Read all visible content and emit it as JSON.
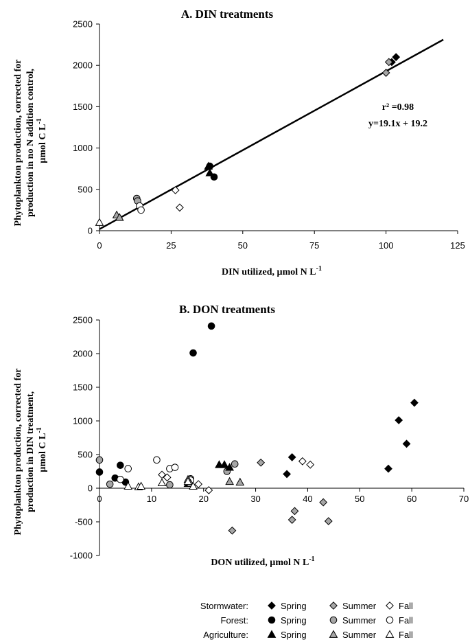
{
  "legend": {
    "rows": [
      {
        "group": "Stormwater:",
        "entries": [
          "Spring",
          "Summer",
          "Fall"
        ]
      },
      {
        "group": "Forest:",
        "entries": [
          "Spring",
          "Summer",
          "Fall"
        ]
      },
      {
        "group": "Agriculture:",
        "entries": [
          "Spring",
          "Summer",
          "Fall"
        ]
      }
    ]
  },
  "colors": {
    "spring": "#000000",
    "summer": "#a6a6a6",
    "fall": "#ffffff",
    "edge": "#000000"
  },
  "chart_data": [
    {
      "type": "scatter",
      "title": "A. DIN treatments",
      "ylabel_lines": [
        "Phytoplankton production, corrected for",
        "production in no N addition control,",
        "µmol C L"
      ],
      "ylabel_sup": "-1",
      "xlabel": "DIN utilized, µmol N L",
      "xlabel_sup": "-1",
      "xlim": [
        0,
        125
      ],
      "ylim": [
        0,
        2500
      ],
      "xticks": [
        0,
        25,
        50,
        75,
        100,
        125
      ],
      "yticks": [
        0,
        500,
        1000,
        1500,
        2000,
        2500
      ],
      "annotations": [
        "r² =0.98",
        "y=19.1x + 19.2"
      ],
      "regression": {
        "slope": 19.1,
        "intercept": 19.2,
        "x": [
          0,
          120
        ]
      },
      "series": [
        {
          "group": "Stormwater",
          "season": "Spring",
          "points": [
            [
              102,
              2040
            ],
            [
              103.5,
              2100
            ]
          ]
        },
        {
          "group": "Stormwater",
          "season": "Summer",
          "points": [
            [
              100,
              1910
            ],
            [
              101,
              2040
            ]
          ]
        },
        {
          "group": "Stormwater",
          "season": "Fall",
          "points": [
            [
              26.5,
              490
            ],
            [
              28,
              280
            ]
          ]
        },
        {
          "group": "Forest",
          "season": "Spring",
          "points": [
            [
              38.5,
              780
            ],
            [
              40,
              650
            ]
          ]
        },
        {
          "group": "Forest",
          "season": "Summer",
          "points": [
            [
              13,
              390
            ],
            [
              13.3,
              360
            ]
          ]
        },
        {
          "group": "Forest",
          "season": "Fall",
          "points": [
            [
              14,
              300
            ],
            [
              14.5,
              250
            ]
          ]
        },
        {
          "group": "Agriculture",
          "season": "Spring",
          "points": [
            [
              38,
              780
            ],
            [
              38.5,
              700
            ]
          ]
        },
        {
          "group": "Agriculture",
          "season": "Summer",
          "points": [
            [
              6,
              190
            ],
            [
              7,
              160
            ]
          ]
        },
        {
          "group": "Agriculture",
          "season": "Fall",
          "points": [
            [
              0,
              100
            ]
          ]
        }
      ]
    },
    {
      "type": "scatter",
      "title": "B. DON treatments",
      "ylabel_lines": [
        "Phytoplankton production, corrected for",
        "production in DIN treatment,",
        "µmol C L"
      ],
      "ylabel_sup": "-1",
      "xlabel": "DON utilized, µmol N L",
      "xlabel_sup": "-1",
      "xlim": [
        0,
        70
      ],
      "ylim": [
        -1000,
        2500
      ],
      "xticks": [
        0,
        10,
        20,
        30,
        40,
        50,
        60,
        70
      ],
      "yticks": [
        -1000,
        -500,
        0,
        500,
        1000,
        1500,
        2000,
        2500
      ],
      "series": [
        {
          "group": "Stormwater",
          "season": "Spring",
          "points": [
            [
              36,
              210
            ],
            [
              37,
              460
            ],
            [
              55.5,
              290
            ],
            [
              57.5,
              1010
            ],
            [
              59,
              660
            ],
            [
              60.5,
              1270
            ]
          ]
        },
        {
          "group": "Stormwater",
          "season": "Summer",
          "points": [
            [
              25.5,
              -630
            ],
            [
              31,
              380
            ],
            [
              37,
              -470
            ],
            [
              37.5,
              -340
            ],
            [
              43,
              -210
            ],
            [
              44,
              -490
            ]
          ]
        },
        {
          "group": "Stormwater",
          "season": "Fall",
          "points": [
            [
              12,
              200
            ],
            [
              13,
              160
            ],
            [
              19,
              60
            ],
            [
              21,
              -30
            ],
            [
              39,
              400
            ],
            [
              40.5,
              350
            ]
          ]
        },
        {
          "group": "Forest",
          "season": "Spring",
          "points": [
            [
              0,
              240
            ],
            [
              3,
              150
            ],
            [
              4,
              340
            ],
            [
              5,
              90
            ],
            [
              18,
              2010
            ],
            [
              21.5,
              2410
            ]
          ]
        },
        {
          "group": "Forest",
          "season": "Summer",
          "points": [
            [
              0,
              420
            ],
            [
              2,
              60
            ],
            [
              13.5,
              50
            ],
            [
              17.5,
              140
            ],
            [
              24.5,
              250
            ],
            [
              26,
              360
            ]
          ]
        },
        {
          "group": "Forest",
          "season": "Fall",
          "points": [
            [
              4,
              130
            ],
            [
              5.5,
              290
            ],
            [
              11,
              420
            ],
            [
              13.5,
              290
            ],
            [
              14.5,
              310
            ],
            [
              17.5,
              120
            ]
          ]
        },
        {
          "group": "Agriculture",
          "season": "Spring",
          "points": [
            [
              17,
              70
            ],
            [
              23,
              350
            ],
            [
              24,
              350
            ],
            [
              25,
              310
            ]
          ]
        },
        {
          "group": "Agriculture",
          "season": "Summer",
          "points": [
            [
              17,
              130
            ],
            [
              17.5,
              70
            ],
            [
              25,
              100
            ],
            [
              27,
              90
            ]
          ]
        },
        {
          "group": "Agriculture",
          "season": "Fall",
          "points": [
            [
              5.5,
              30
            ],
            [
              7.5,
              20
            ],
            [
              8,
              30
            ],
            [
              12,
              80
            ],
            [
              17,
              100
            ],
            [
              18,
              30
            ]
          ]
        }
      ]
    }
  ]
}
